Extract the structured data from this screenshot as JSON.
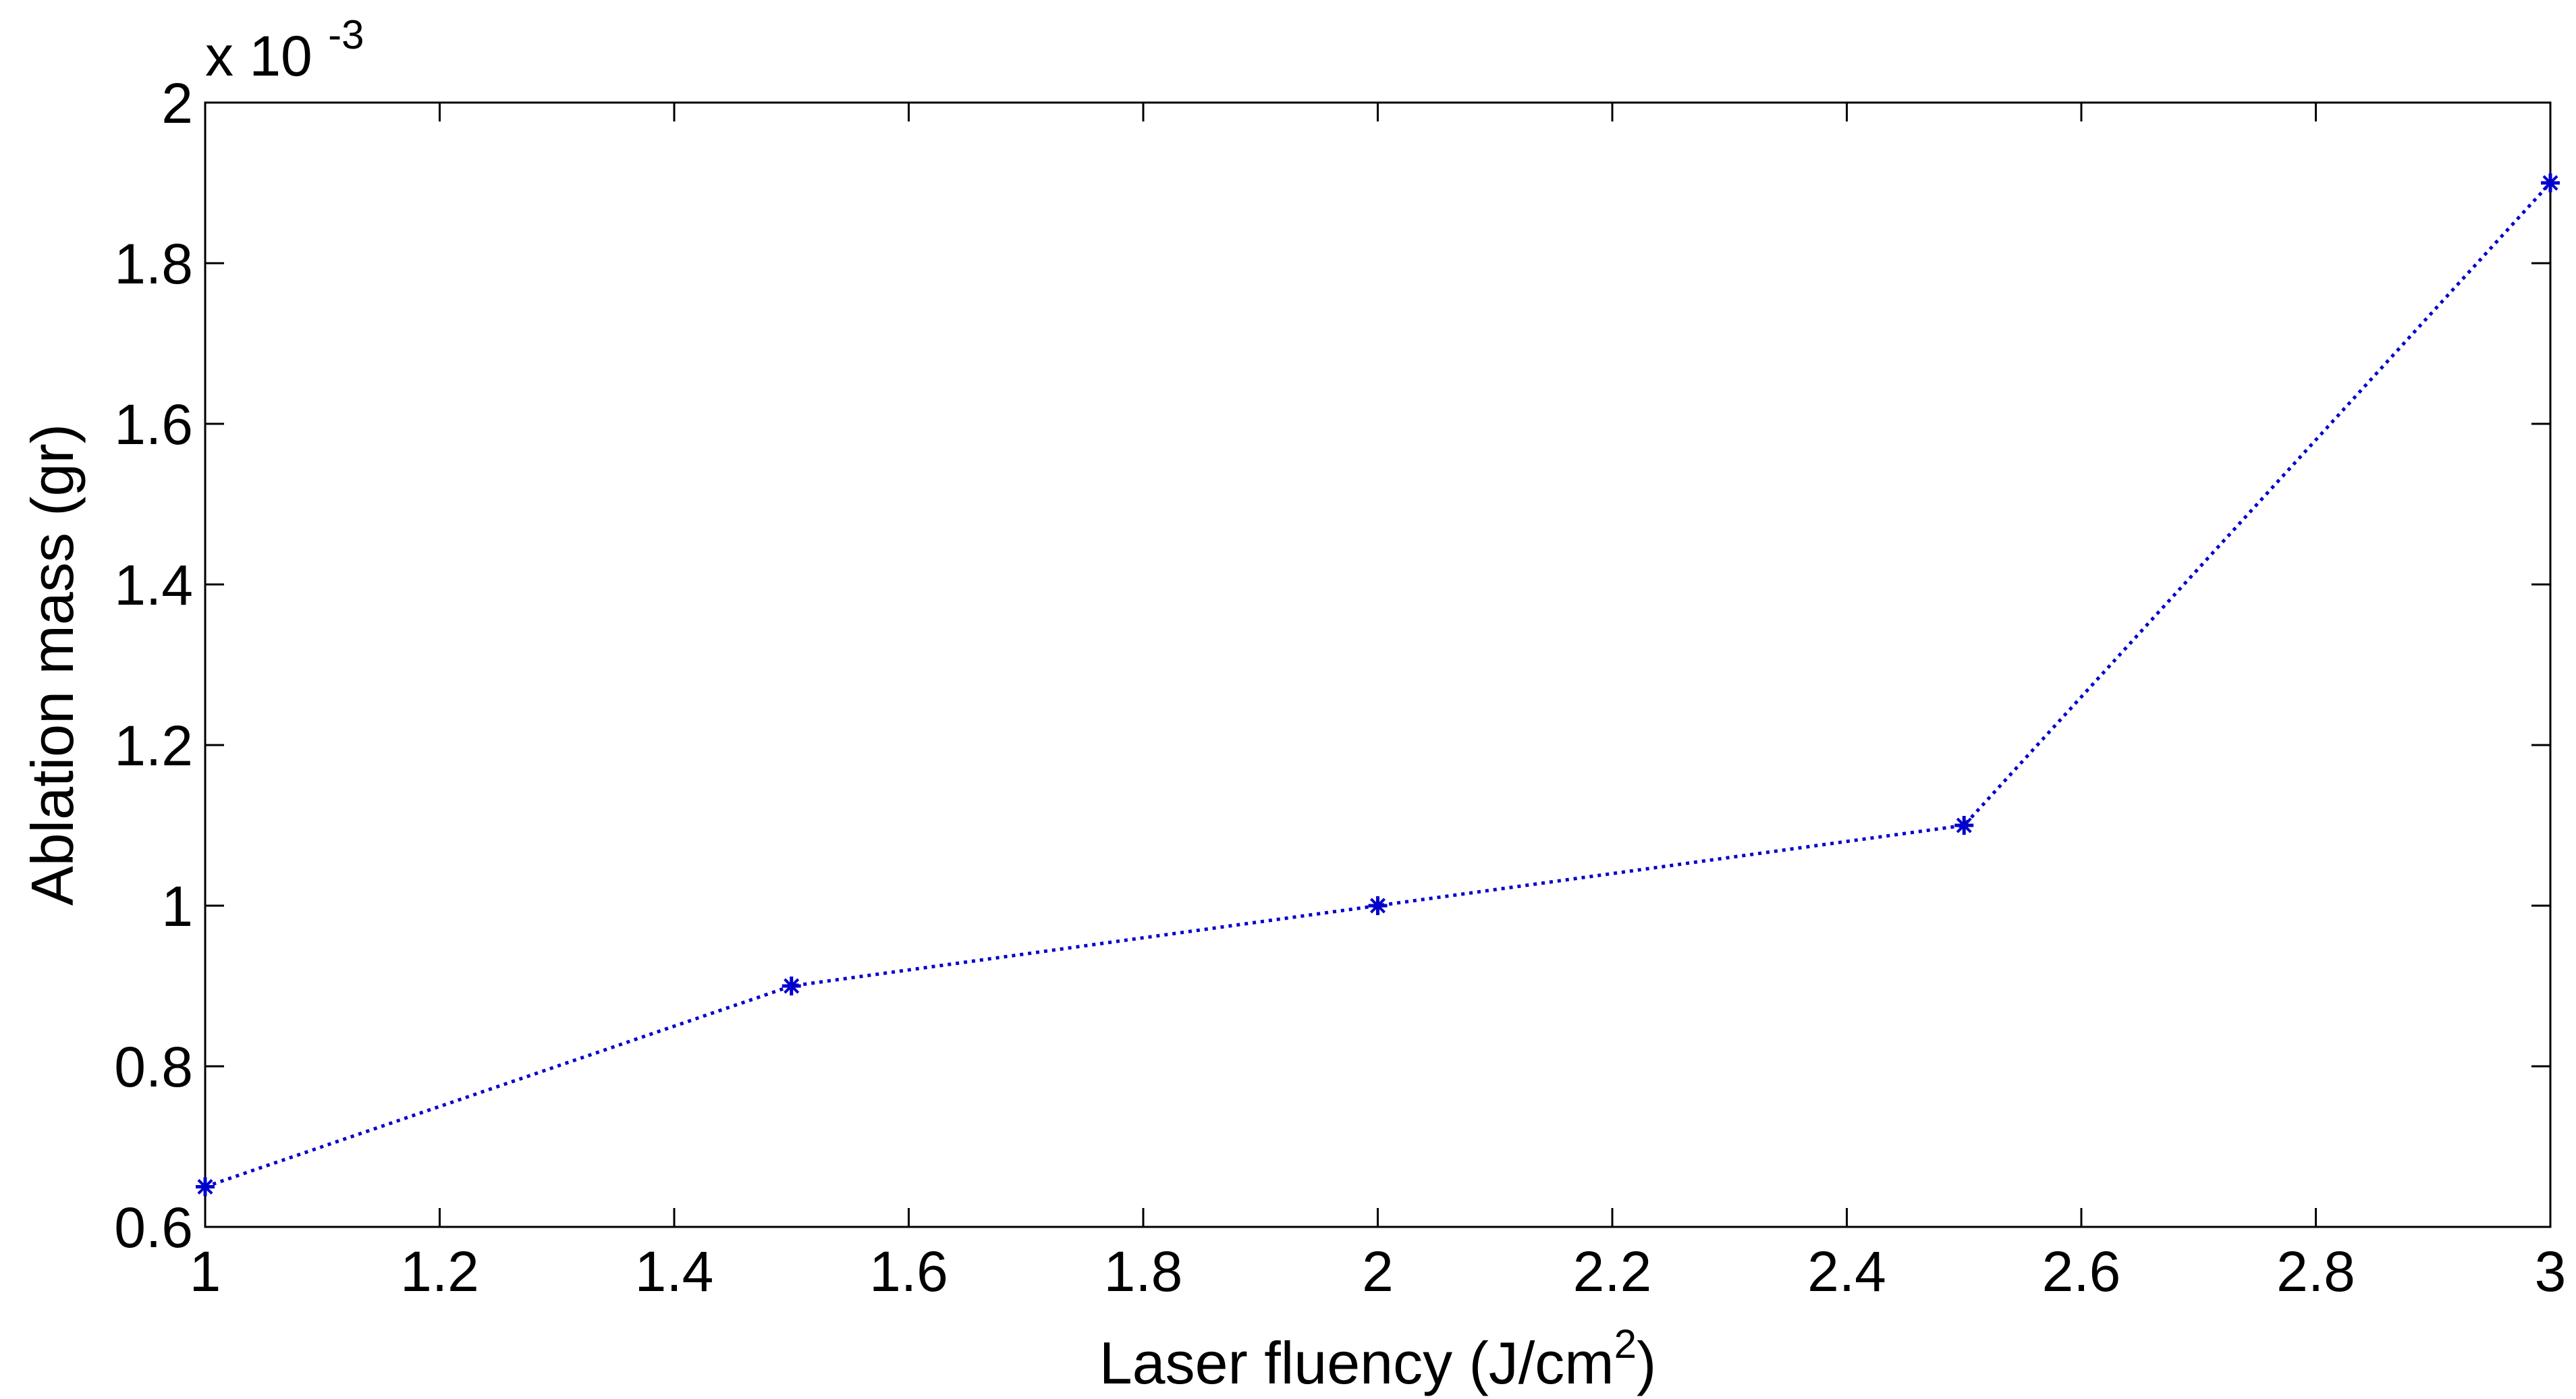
{
  "chart_data": {
    "type": "line",
    "title": "",
    "xlabel": {
      "text": "Laser fluency (J/cm",
      "superscript": "2",
      "suffix": ")"
    },
    "ylabel": "Ablation mass (gr)",
    "y_exponent": {
      "prefix": "x 10",
      "power": "-3"
    },
    "xlim": [
      1,
      3
    ],
    "ylim": [
      0.6,
      2.0
    ],
    "xticks": [
      1,
      1.2,
      1.4,
      1.6,
      1.8,
      2,
      2.2,
      2.4,
      2.6,
      2.8,
      3
    ],
    "xtick_labels": [
      "1",
      "1.2",
      "1.4",
      "1.6",
      "1.8",
      "2",
      "2.2",
      "2.4",
      "2.6",
      "2.8",
      "3"
    ],
    "yticks": [
      0.6,
      0.8,
      1.0,
      1.2,
      1.4,
      1.6,
      1.8,
      2.0
    ],
    "ytick_labels": [
      "0.6",
      "0.8",
      "1",
      "1.2",
      "1.4",
      "1.6",
      "1.8",
      "2"
    ],
    "grid": false,
    "series": [
      {
        "x": [
          1.0,
          1.5,
          2.0,
          2.5,
          3.0
        ],
        "y": [
          0.65,
          0.9,
          1.0,
          1.1,
          1.9
        ],
        "line_style": "dotted",
        "marker": "star",
        "color": "#0000cc"
      }
    ]
  }
}
